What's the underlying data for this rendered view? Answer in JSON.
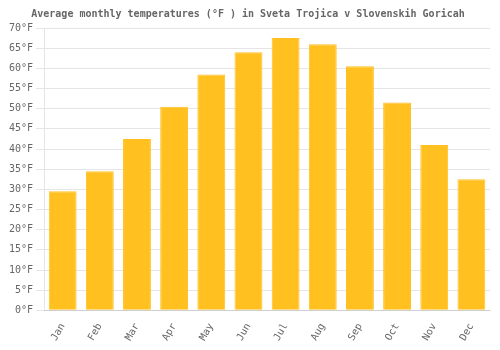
{
  "chart_data": {
    "type": "bar",
    "title": "Average monthly temperatures (°F ) in Sveta Trojica v Slovenskih Goricah",
    "categories": [
      "Jan",
      "Feb",
      "Mar",
      "Apr",
      "May",
      "Jun",
      "Jul",
      "Aug",
      "Sep",
      "Oct",
      "Nov",
      "Dec"
    ],
    "values": [
      29.5,
      34.5,
      42.5,
      50.5,
      58.5,
      64.0,
      67.5,
      66.0,
      60.5,
      51.5,
      41.0,
      32.5
    ],
    "color": "#FFC020",
    "ylim": [
      0,
      70
    ],
    "yticks": [
      {
        "value": 0,
        "label": "0°F"
      },
      {
        "value": 5,
        "label": "5°F"
      },
      {
        "value": 10,
        "label": "10°F"
      },
      {
        "value": 15,
        "label": "15°F"
      },
      {
        "value": 20,
        "label": "20°F"
      },
      {
        "value": 25,
        "label": "25°F"
      },
      {
        "value": 30,
        "label": "30°F"
      },
      {
        "value": 35,
        "label": "35°F"
      },
      {
        "value": 40,
        "label": "40°F"
      },
      {
        "value": 45,
        "label": "45°F"
      },
      {
        "value": 50,
        "label": "50°F"
      },
      {
        "value": 55,
        "label": "55°F"
      },
      {
        "value": 60,
        "label": "60°F"
      },
      {
        "value": 65,
        "label": "65°F"
      },
      {
        "value": 70,
        "label": "70°F"
      }
    ],
    "grid": true
  }
}
